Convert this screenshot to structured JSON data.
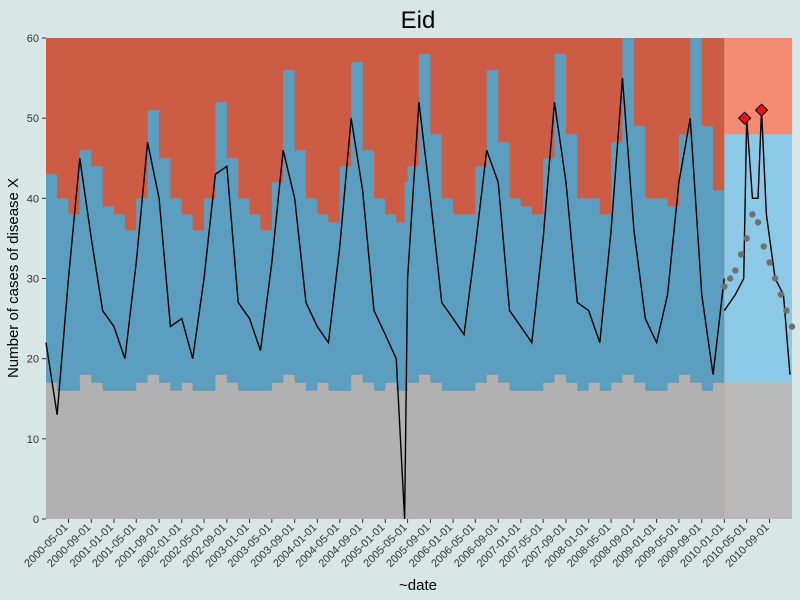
{
  "chart_data": {
    "type": "line",
    "title": "Eid",
    "xlabel": "~date",
    "ylabel": "Number of cases of disease X",
    "ylim": [
      0,
      60
    ],
    "yticks": [
      0,
      10,
      20,
      30,
      40,
      50,
      60
    ],
    "xlim": [
      "2000-01-01",
      "2010-12-31"
    ],
    "xticks": [
      "2000-05-01",
      "2000-09-01",
      "2001-01-01",
      "2001-05-01",
      "2001-09-01",
      "2002-01-01",
      "2002-05-01",
      "2002-09-01",
      "2003-01-01",
      "2003-05-01",
      "2003-09-01",
      "2004-01-01",
      "2004-05-01",
      "2004-09-01",
      "2005-01-01",
      "2005-05-01",
      "2005-09-01",
      "2006-01-01",
      "2006-05-01",
      "2006-09-01",
      "2007-01-01",
      "2007-05-01",
      "2007-09-01",
      "2008-01-01",
      "2008-05-01",
      "2008-09-01",
      "2009-01-01",
      "2009-05-01",
      "2009-09-01",
      "2010-01-01",
      "2010-05-01",
      "2010-09-01"
    ],
    "grid": false,
    "observed_series": {
      "x": [
        "2000-01-01",
        "2000-03-01",
        "2000-05-01",
        "2000-07-01",
        "2000-09-01",
        "2000-11-01",
        "2001-01-01",
        "2001-03-01",
        "2001-05-01",
        "2001-07-01",
        "2001-09-01",
        "2001-11-01",
        "2002-01-01",
        "2002-03-01",
        "2002-05-01",
        "2002-07-01",
        "2002-09-01",
        "2002-11-01",
        "2003-01-01",
        "2003-03-01",
        "2003-05-01",
        "2003-07-01",
        "2003-09-01",
        "2003-11-01",
        "2004-01-01",
        "2004-03-01",
        "2004-05-01",
        "2004-07-01",
        "2004-09-01",
        "2004-11-01",
        "2005-01-01",
        "2005-03-01",
        "2005-04-15",
        "2005-05-01",
        "2005-07-01",
        "2005-09-01",
        "2005-11-01",
        "2006-01-01",
        "2006-03-01",
        "2006-05-01",
        "2006-07-01",
        "2006-09-01",
        "2006-11-01",
        "2007-01-01",
        "2007-03-01",
        "2007-05-01",
        "2007-07-01",
        "2007-09-01",
        "2007-11-01",
        "2008-01-01",
        "2008-03-01",
        "2008-05-01",
        "2008-07-01",
        "2008-09-01",
        "2008-11-01",
        "2009-01-01",
        "2009-03-01",
        "2009-05-01",
        "2009-07-01",
        "2009-09-01",
        "2009-11-01",
        "2009-12-31"
      ],
      "values": [
        22,
        13,
        30,
        45,
        35,
        26,
        24,
        20,
        32,
        47,
        40,
        24,
        25,
        20,
        30,
        43,
        44,
        27,
        25,
        21,
        32,
        46,
        40,
        27,
        24,
        22,
        34,
        50,
        41,
        26,
        23,
        20,
        0,
        30,
        52,
        40,
        27,
        25,
        23,
        34,
        46,
        42,
        26,
        24,
        22,
        35,
        52,
        42,
        27,
        26,
        22,
        36,
        55,
        36,
        25,
        22,
        28,
        42,
        50,
        28,
        18,
        30
      ]
    },
    "forecast_series": {
      "x": [
        "2010-01-01",
        "2010-02-01",
        "2010-03-01",
        "2010-04-01",
        "2010-05-01",
        "2010-06-01",
        "2010-07-01",
        "2010-08-01",
        "2010-09-01",
        "2010-10-01",
        "2010-11-01",
        "2010-12-01",
        "2010-12-31"
      ],
      "values": [
        29,
        30,
        31,
        33,
        35,
        38,
        37,
        34,
        32,
        30,
        28,
        26,
        24
      ]
    },
    "tail_line": {
      "x": [
        "2010-01-01",
        "2010-03-01",
        "2010-04-15",
        "2010-05-01",
        "2010-06-01",
        "2010-07-01",
        "2010-07-20",
        "2010-08-15",
        "2010-10-01",
        "2010-11-15",
        "2010-12-20"
      ],
      "values": [
        26,
        28,
        30,
        50,
        40,
        40,
        51,
        38,
        30,
        28,
        18
      ]
    },
    "outbreak_points": {
      "x": [
        "2010-04-20",
        "2010-07-20"
      ],
      "values": [
        50,
        51
      ]
    },
    "bands": {
      "lower_threshold": [
        17,
        16,
        16,
        18,
        17,
        16,
        16,
        16,
        17,
        18,
        17,
        16,
        17,
        16,
        16,
        18,
        17,
        16,
        16,
        16,
        17,
        18,
        17,
        16,
        17,
        16,
        16,
        18,
        17,
        16,
        17,
        16,
        16,
        17,
        18,
        17,
        16,
        16,
        16,
        17,
        18,
        17,
        16,
        16,
        16,
        17,
        18,
        17,
        16,
        17,
        16,
        17,
        18,
        17,
        16,
        16,
        17,
        18,
        17,
        16,
        17,
        18
      ],
      "upper_threshold": [
        43,
        40,
        38,
        46,
        44,
        39,
        38,
        36,
        40,
        51,
        45,
        40,
        38,
        36,
        40,
        52,
        45,
        40,
        38,
        36,
        42,
        56,
        46,
        40,
        38,
        37,
        44,
        57,
        46,
        40,
        38,
        37,
        42,
        44,
        58,
        48,
        40,
        38,
        38,
        44,
        56,
        47,
        40,
        39,
        38,
        45,
        58,
        48,
        40,
        40,
        38,
        47,
        60,
        49,
        40,
        40,
        39,
        48,
        60,
        49,
        41,
        43
      ]
    },
    "colors": {
      "background": "#d9e6e6",
      "alarm_region": "#cd5c45",
      "normal_region": "#5b9ebf",
      "below_region": "#b1b1b1",
      "forecast_alarm": "#f48b73",
      "forecast_normal": "#8cc9e6",
      "forecast_below": "#b9b9b9",
      "observed_line": "#000000",
      "forecast_points": "#707070",
      "outbreak_marker": "#ee1111"
    }
  }
}
